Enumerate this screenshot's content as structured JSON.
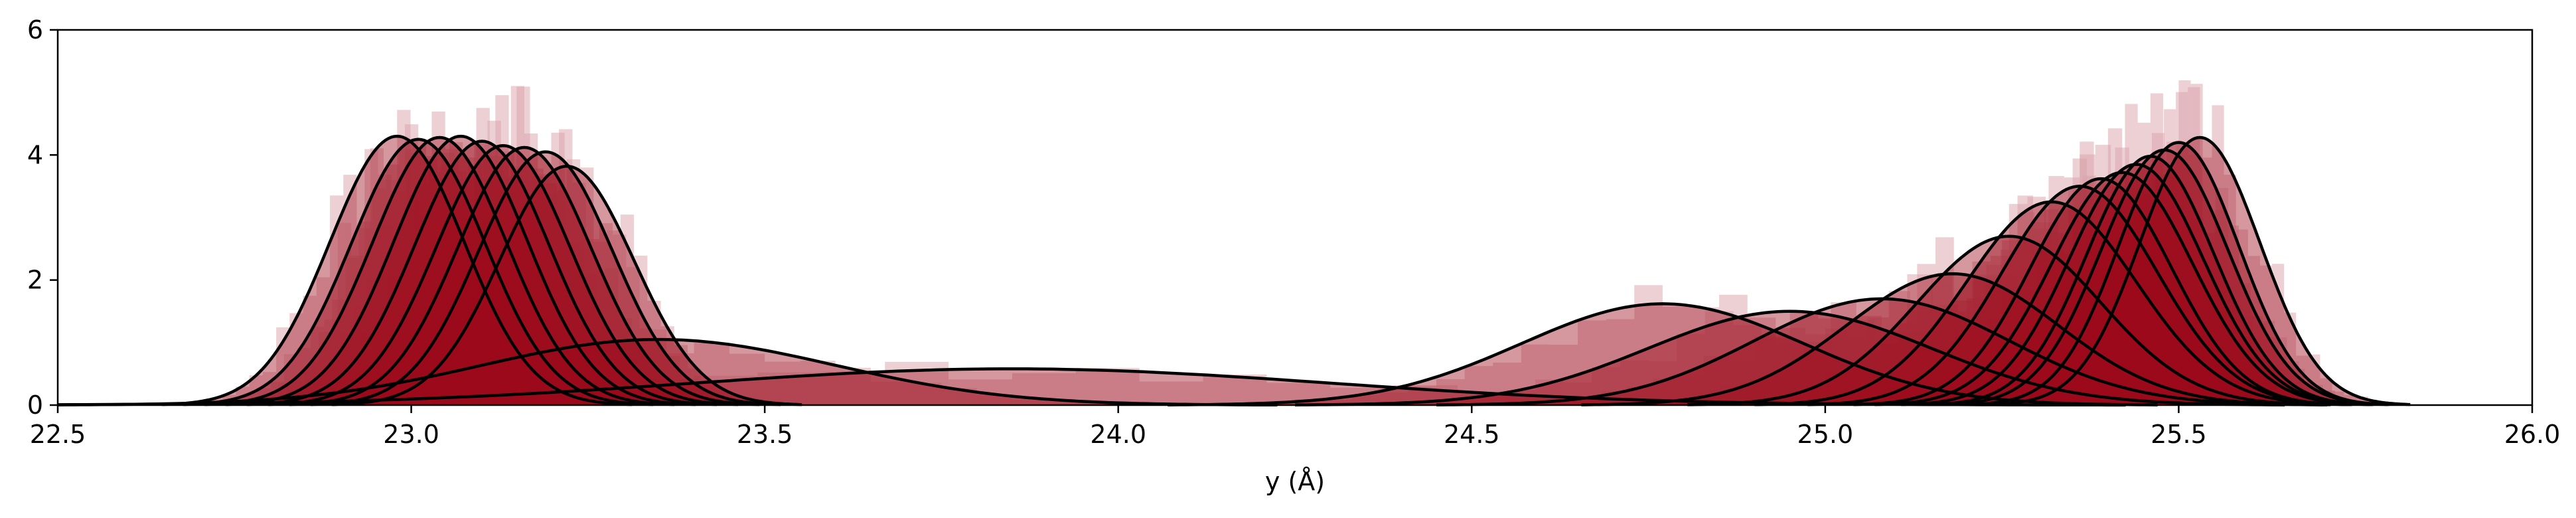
{
  "chart_data": {
    "type": "area",
    "title": "",
    "xlabel": "y (Å)",
    "ylabel": "",
    "xlim": [
      22.5,
      26.0
    ],
    "ylim": [
      0,
      6
    ],
    "x_ticks": [
      "22.5",
      "23.0",
      "23.5",
      "24.0",
      "24.5",
      "25.0",
      "25.5",
      "26.0"
    ],
    "y_ticks": [
      "0",
      "2",
      "4",
      "6"
    ],
    "grid": false,
    "legend": "none",
    "colors": {
      "fill_dark": "#9b0a1a",
      "fill_light": "#d9a2aa",
      "curve": "#000000",
      "axis": "#000000"
    },
    "series": [
      {
        "mean": 22.98,
        "sd": 0.095,
        "peak": 4.3,
        "group": "left"
      },
      {
        "mean": 23.01,
        "sd": 0.095,
        "peak": 4.25,
        "group": "left"
      },
      {
        "mean": 23.04,
        "sd": 0.095,
        "peak": 4.28,
        "group": "left"
      },
      {
        "mean": 23.07,
        "sd": 0.095,
        "peak": 4.3,
        "group": "left"
      },
      {
        "mean": 23.1,
        "sd": 0.095,
        "peak": 4.22,
        "group": "left"
      },
      {
        "mean": 23.13,
        "sd": 0.095,
        "peak": 4.15,
        "group": "left"
      },
      {
        "mean": 23.16,
        "sd": 0.095,
        "peak": 4.12,
        "group": "left"
      },
      {
        "mean": 23.19,
        "sd": 0.095,
        "peak": 4.05,
        "group": "left"
      },
      {
        "mean": 23.22,
        "sd": 0.095,
        "peak": 3.82,
        "group": "left"
      },
      {
        "mean": 23.35,
        "sd": 0.25,
        "peak": 1.05,
        "group": "spread"
      },
      {
        "mean": 23.85,
        "sd": 0.45,
        "peak": 0.58,
        "group": "spread"
      },
      {
        "mean": 24.77,
        "sd": 0.2,
        "peak": 1.62,
        "group": "middle"
      },
      {
        "mean": 24.95,
        "sd": 0.2,
        "peak": 1.5,
        "group": "middle"
      },
      {
        "mean": 25.08,
        "sd": 0.18,
        "peak": 1.7,
        "group": "middle"
      },
      {
        "mean": 25.18,
        "sd": 0.15,
        "peak": 2.1,
        "group": "middle"
      },
      {
        "mean": 25.26,
        "sd": 0.13,
        "peak": 2.7,
        "group": "right"
      },
      {
        "mean": 25.32,
        "sd": 0.12,
        "peak": 3.25,
        "group": "right"
      },
      {
        "mean": 25.36,
        "sd": 0.11,
        "peak": 3.5,
        "group": "right"
      },
      {
        "mean": 25.39,
        "sd": 0.1,
        "peak": 3.62,
        "group": "right"
      },
      {
        "mean": 25.42,
        "sd": 0.1,
        "peak": 3.72,
        "group": "right"
      },
      {
        "mean": 25.44,
        "sd": 0.095,
        "peak": 3.85,
        "group": "right"
      },
      {
        "mean": 25.46,
        "sd": 0.09,
        "peak": 3.98,
        "group": "right"
      },
      {
        "mean": 25.48,
        "sd": 0.09,
        "peak": 4.08,
        "group": "right"
      },
      {
        "mean": 25.5,
        "sd": 0.085,
        "peak": 4.2,
        "group": "right"
      },
      {
        "mean": 25.53,
        "sd": 0.085,
        "peak": 4.28,
        "group": "right"
      }
    ]
  }
}
